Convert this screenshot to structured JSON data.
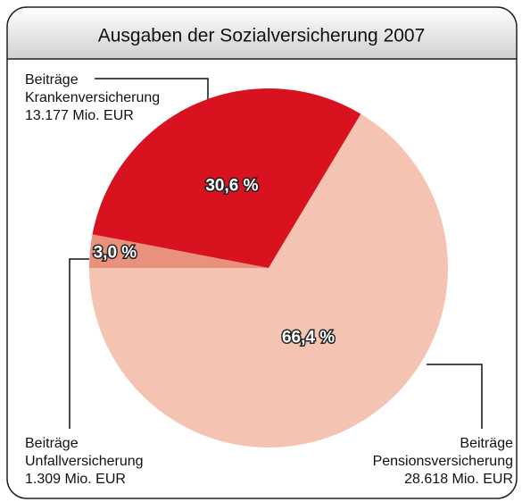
{
  "chart_data": {
    "type": "pie",
    "title": "Ausgaben der Sozialversicherung 2007",
    "labels": [
      [
        "Beiträge",
        "Unfallversicherung",
        "1.309 Mio. EUR"
      ],
      [
        "Beiträge",
        "Krankenversicherung",
        "13.177 Mio. EUR"
      ],
      [
        "Beiträge",
        "Pensionsversicherung",
        "28.618 Mio. EUR"
      ]
    ],
    "values": [
      3.0,
      30.6,
      66.4
    ],
    "value_labels": [
      "3,0 %",
      "30,6 %",
      "66,4 %"
    ],
    "colors": [
      "#e8917c",
      "#d8121e",
      "#f5c3b1"
    ]
  }
}
